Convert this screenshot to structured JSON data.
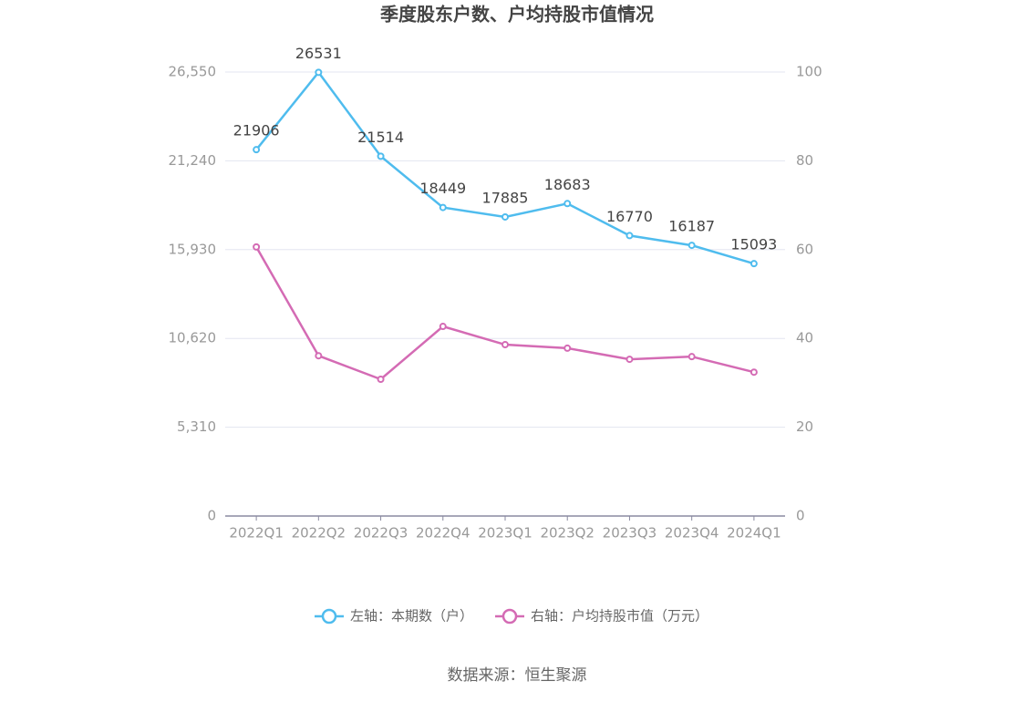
{
  "chart_data": {
    "type": "line",
    "title": "季度股东户数、户均持股市值情况",
    "categories": [
      "2022Q1",
      "2022Q2",
      "2022Q3",
      "2022Q4",
      "2023Q1",
      "2023Q2",
      "2023Q3",
      "2023Q4",
      "2024Q1"
    ],
    "series": [
      {
        "name": "左轴：本期数（户）",
        "color": "#4fbcee",
        "values": [
          21906,
          26531,
          21514,
          18449,
          17885,
          18683,
          16770,
          16187,
          15093
        ],
        "data_labels": true
      },
      {
        "name": "右轴：户均持股市值（万元）",
        "color": "#d46bb4",
        "axis": "y2",
        "values": [
          60.6,
          36.1,
          30.8,
          42.7,
          38.6,
          37.8,
          35.3,
          35.9,
          32.4
        ]
      }
    ],
    "ylim": [
      0,
      26550
    ],
    "yticks": [
      0,
      {
        "value": 5310,
        "label": "5,310"
      },
      {
        "value": 10620,
        "label": "10,620"
      },
      {
        "value": 15930,
        "label": "15,930"
      },
      {
        "value": 21240,
        "label": "21,240"
      },
      {
        "value": 26550,
        "label": "26,550"
      }
    ],
    "y2lim": [
      0,
      100
    ],
    "y2ticks": [
      0,
      20,
      40,
      60,
      80,
      100
    ],
    "grid": true,
    "legend": "bottom",
    "source": "数据来源：恒生聚源"
  }
}
